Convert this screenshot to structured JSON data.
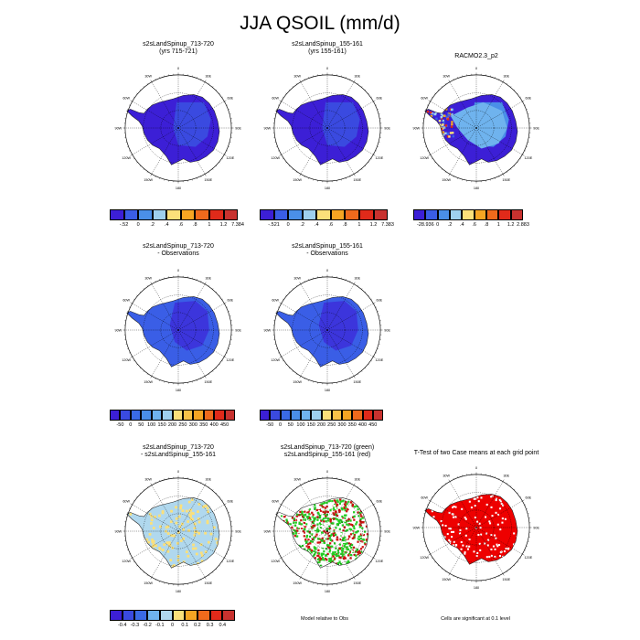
{
  "title": "JJA QSOIL (mm/d)",
  "colors": {
    "ocean": "#ffffff",
    "grid": "#000000"
  },
  "panels": [
    {
      "id": "p1",
      "title": [
        "s2sLandSpinup_713-720",
        "(yrs 715-721)"
      ],
      "style": "low"
    },
    {
      "id": "p2",
      "title": [
        "s2sLandSpinup_155-161",
        "(yrs 155-161)"
      ],
      "style": "low"
    },
    {
      "id": "p3",
      "title": [
        "RACMO2.3_p2",
        ""
      ],
      "style": "racmo"
    },
    {
      "id": "p4",
      "title": [
        "s2sLandSpinup_713-720",
        "- Observations"
      ],
      "style": "obs"
    },
    {
      "id": "p5",
      "title": [
        "s2sLandSpinup_155-161",
        "- Observations"
      ],
      "style": "obs"
    },
    {
      "id": "p7",
      "title": [
        "s2sLandSpinup_713-720",
        "- s2sLandSpinup_155-161"
      ],
      "style": "diff"
    },
    {
      "id": "p8",
      "title": [
        "s2sLandSpinup_713-720 (green)",
        "s2sLandSpinup_155-161 (red)"
      ],
      "style": "green"
    },
    {
      "id": "p9",
      "title": [
        "T-Test of two Case means at each grid point",
        ""
      ],
      "style": "ttest"
    }
  ],
  "lon_labels": [
    "0",
    "30E",
    "60E",
    "90E",
    "120E",
    "150E",
    "180",
    "150W",
    "120W",
    "90W",
    "60W",
    "30W"
  ],
  "colorbars": [
    {
      "id": "cb1",
      "labels": [
        "-.52",
        "0",
        ".2",
        ".4",
        ".6",
        ".8",
        "1",
        "1.2",
        "7.384"
      ],
      "colors": [
        "#3c1fd6",
        "#3a5ee6",
        "#4a8fe8",
        "#9ed0ee",
        "#fbe07a",
        "#f6a523",
        "#ef6a1c",
        "#e02a1a",
        "#c8322f"
      ]
    },
    {
      "id": "cb2",
      "labels": [
        "-.521",
        "0",
        ".2",
        ".4",
        ".6",
        ".8",
        "1",
        "1.2",
        "7.383"
      ],
      "colors": [
        "#3c1fd6",
        "#3a5ee6",
        "#4a8fe8",
        "#9ed0ee",
        "#fbe07a",
        "#f6a523",
        "#ef6a1c",
        "#e02a1a",
        "#c8322f"
      ]
    },
    {
      "id": "cb3",
      "labels": [
        "-28.936",
        "0",
        ".2",
        ".4",
        ".6",
        ".8",
        "1",
        "1.2",
        "2.883"
      ],
      "colors": [
        "#3c1fd6",
        "#3a5ee6",
        "#4a8fe8",
        "#9ed0ee",
        "#fbe07a",
        "#f6a523",
        "#ef6a1c",
        "#e02a1a",
        "#c8322f"
      ]
    },
    {
      "id": "cb4",
      "labels": [
        "-50",
        "0",
        "50",
        "100",
        "150",
        "200",
        "250",
        "300",
        "350",
        "400",
        "450"
      ],
      "colors": [
        "#3c1fd6",
        "#3a4ae0",
        "#3a6ae6",
        "#4a8fe8",
        "#6fb3ee",
        "#9ed0ee",
        "#fbe07a",
        "#f8c248",
        "#f6a523",
        "#ef6a1c",
        "#e02a1a",
        "#c8322f"
      ]
    },
    {
      "id": "cb5",
      "labels": [
        "-50",
        "0",
        "50",
        "100",
        "150",
        "200",
        "250",
        "300",
        "350",
        "400",
        "450"
      ],
      "colors": [
        "#3c1fd6",
        "#3a4ae0",
        "#3a6ae6",
        "#4a8fe8",
        "#6fb3ee",
        "#9ed0ee",
        "#fbe07a",
        "#f8c248",
        "#f6a523",
        "#ef6a1c",
        "#e02a1a",
        "#c8322f"
      ]
    },
    {
      "id": "cb7",
      "labels": [
        "-0.4",
        "-0.3",
        "-0.2",
        "-0.1",
        "0",
        "0.1",
        "0.2",
        "0.3",
        "0.4"
      ],
      "colors": [
        "#3c1fd6",
        "#3a4ae0",
        "#3a6ae6",
        "#6fb3ee",
        "#b0d8ee",
        "#fbe07a",
        "#f6a523",
        "#ef6a1c",
        "#e02a1a",
        "#c8322f"
      ]
    }
  ],
  "notes": {
    "model_relative": "Model relative to Obs",
    "significance": "Cells are significant at 0.1 level"
  }
}
